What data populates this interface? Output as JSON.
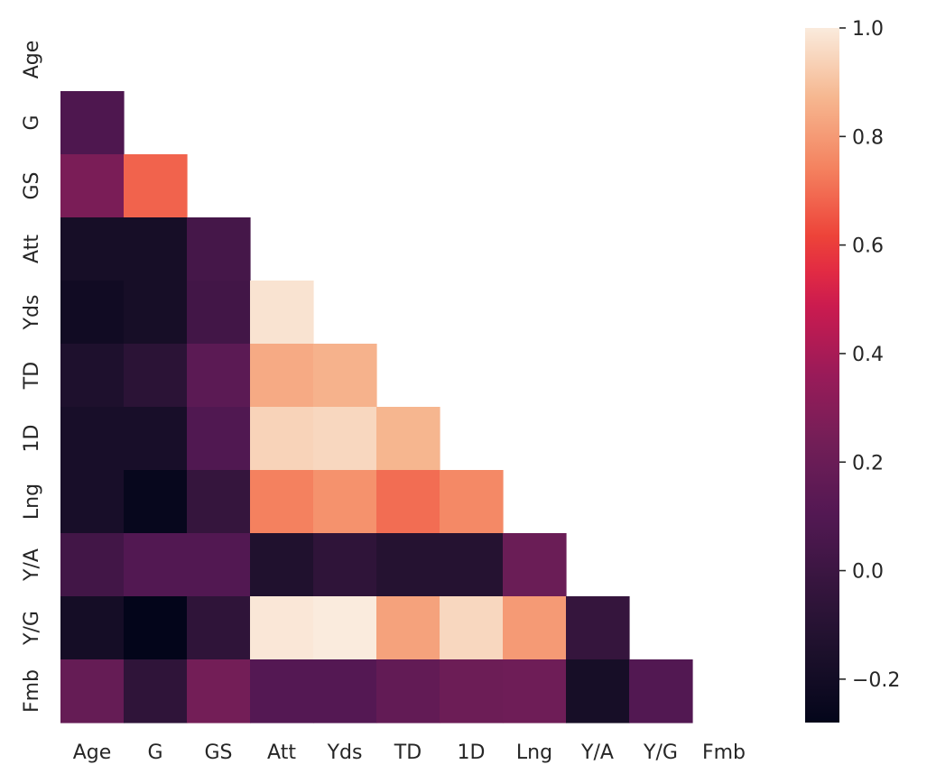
{
  "chart_data": {
    "type": "heatmap",
    "title": "",
    "xlabel": "",
    "ylabel": "",
    "x_labels": [
      "Age",
      "G",
      "GS",
      "Att",
      "Yds",
      "TD",
      "1D",
      "Lng",
      "Y/A",
      "Y/G",
      "Fmb"
    ],
    "y_labels": [
      "Age",
      "G",
      "GS",
      "Att",
      "Yds",
      "TD",
      "1D",
      "Lng",
      "Y/A",
      "Y/G",
      "Fmb"
    ],
    "mask": "upper-triangle-and-diagonal",
    "values": [
      [
        null,
        null,
        null,
        null,
        null,
        null,
        null,
        null,
        null,
        null,
        null
      ],
      [
        0.08,
        null,
        null,
        null,
        null,
        null,
        null,
        null,
        null,
        null,
        null
      ],
      [
        0.26,
        0.68,
        null,
        null,
        null,
        null,
        null,
        null,
        null,
        null,
        null
      ],
      [
        -0.18,
        -0.18,
        0.04,
        null,
        null,
        null,
        null,
        null,
        null,
        null,
        null
      ],
      [
        -0.21,
        -0.18,
        0.03,
        0.98,
        null,
        null,
        null,
        null,
        null,
        null,
        null
      ],
      [
        -0.14,
        -0.08,
        0.14,
        0.84,
        0.86,
        null,
        null,
        null,
        null,
        null,
        null
      ],
      [
        -0.17,
        -0.17,
        0.09,
        0.94,
        0.95,
        0.87,
        null,
        null,
        null,
        null,
        null
      ],
      [
        -0.17,
        -0.26,
        -0.03,
        0.74,
        0.78,
        0.7,
        0.76,
        null,
        null,
        null,
        null
      ],
      [
        0.03,
        0.1,
        0.1,
        -0.13,
        -0.06,
        -0.11,
        -0.11,
        0.2,
        null,
        null,
        null
      ],
      [
        -0.19,
        -0.28,
        -0.06,
        0.99,
        1.0,
        0.82,
        0.95,
        0.8,
        -0.03,
        null,
        null
      ],
      [
        0.18,
        -0.06,
        0.24,
        0.11,
        0.11,
        0.17,
        0.21,
        0.22,
        -0.18,
        0.1,
        null
      ]
    ],
    "colorbar": {
      "vmin": -0.28,
      "vmax": 1.0,
      "ticks": [
        -0.2,
        0.0,
        0.2,
        0.4,
        0.6,
        0.8,
        1.0
      ],
      "tick_labels": [
        "−0.2",
        "0.0",
        "0.2",
        "0.4",
        "0.6",
        "0.8",
        "1.0"
      ]
    },
    "colormap": "rocket",
    "grid": false,
    "legend": "colorbar-right"
  }
}
